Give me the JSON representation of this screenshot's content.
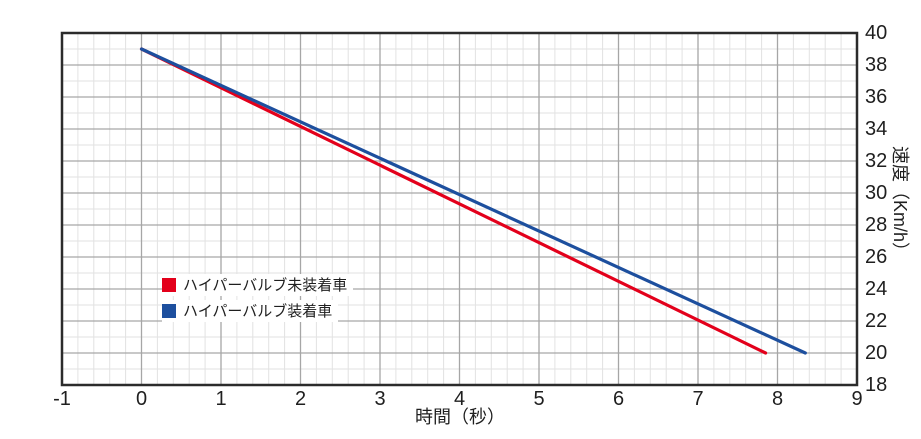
{
  "chart_data": {
    "type": "line",
    "title": "",
    "xlabel": "時間（秒）",
    "ylabel": "速度（Km/h）",
    "x_range": [
      -1,
      9
    ],
    "y_range": [
      18,
      40
    ],
    "x_tick_step": 1,
    "x_minor_step": 0.2,
    "y_tick_step": 2,
    "y_minor_step": 1,
    "x_ticks": [
      -1,
      0,
      1,
      2,
      3,
      4,
      5,
      6,
      7,
      8,
      9
    ],
    "y_ticks": [
      40,
      38,
      36,
      34,
      32,
      30,
      28,
      26,
      24,
      22,
      20,
      18
    ],
    "grid": "on (major + minor)",
    "y_axis_side": "right",
    "legend_position": "inside bottom-left",
    "series": [
      {
        "name": "ハイパーバルブ未装着車",
        "color": "#e3001b",
        "points": [
          [
            0,
            39
          ],
          [
            7.85,
            20
          ]
        ]
      },
      {
        "name": "ハイパーバルブ装着車",
        "color": "#1d4f9e",
        "points": [
          [
            0,
            39
          ],
          [
            8.35,
            20
          ]
        ]
      }
    ],
    "colors": {
      "background": "#ffffff",
      "plot_border": "#2b2b2b",
      "major_grid": "#a6a6a6",
      "minor_grid": "#e2e2e2",
      "text": "#1f1f1f"
    }
  }
}
